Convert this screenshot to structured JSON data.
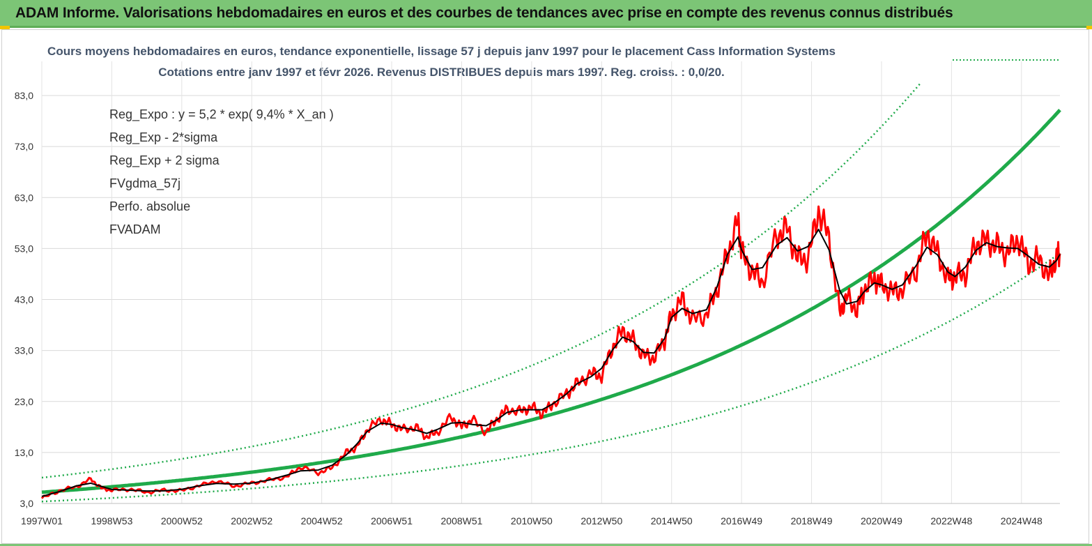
{
  "banner": {
    "title": "ADAM Informe. Valorisations hebdomadaires en euros et des courbes de tendances avec prise en compte des revenus connus distribués"
  },
  "chart_data": {
    "type": "line",
    "title": "Cours moyens hebdomadaires en euros, tendance exponentielle, lissage 57 j depuis janv 1997 pour le placement Cass Information Systems",
    "subtitle": "Cotations entre janv 1997 et févr 2026. Revenus DISTRIBUES depuis mars 1997. Reg. croiss. : 0,0/20.",
    "xlabel": "",
    "ylabel": "",
    "ylim": [
      3,
      93
    ],
    "xlim": [
      1997.0,
      2026.1
    ],
    "yticks": [
      "83,0",
      "73,0",
      "63,0",
      "53,0",
      "43,0",
      "33,0",
      "23,0",
      "13,0",
      "3,0"
    ],
    "ytick_values": [
      83,
      73,
      63,
      53,
      43,
      33,
      23,
      13,
      3
    ],
    "xticks": [
      "1997W01",
      "1998W53",
      "2000W52",
      "2002W52",
      "2004W52",
      "2006W51",
      "2008W51",
      "2010W50",
      "2012W50",
      "2014W50",
      "2016W49",
      "2018W49",
      "2020W49",
      "2022W48",
      "2024W48"
    ],
    "xtick_years": [
      1997.0,
      1999.0,
      2001.0,
      2003.0,
      2005.0,
      2007.0,
      2009.0,
      2011.0,
      2013.0,
      2015.0,
      2017.0,
      2019.0,
      2021.0,
      2023.0,
      2025.0
    ],
    "grid": true,
    "legend_position": "top-left",
    "trend": {
      "a": 5.2,
      "rate": 0.094,
      "sigma_factor_low": 0.65,
      "sigma_factor_high": 1.55
    },
    "series": [
      {
        "name": "Reg_Expo : y = 5,2 * exp( 9,4% *  X_an )",
        "color": "#1faa4a",
        "style": "solid-thick"
      },
      {
        "name": "Reg_Exp - 2*sigma",
        "color": "#1faa4a",
        "style": "dotted"
      },
      {
        "name": "Reg_Exp + 2 sigma",
        "color": "#1faa4a",
        "style": "dotted"
      },
      {
        "name": "FVgdma_57j",
        "color": "#000000",
        "style": "solid"
      },
      {
        "name": "Perfo. absolue",
        "color": "#ff0000",
        "style": "dotted"
      },
      {
        "name": "FVADAM",
        "color": "#ff0000",
        "style": "solid-thick",
        "x": [
          1997.0,
          1997.5,
          1998.0,
          1998.4,
          1998.7,
          1999.0,
          1999.5,
          2000.0,
          2000.5,
          2001.0,
          2001.5,
          2002.0,
          2002.5,
          2003.0,
          2003.5,
          2004.0,
          2004.4,
          2004.9,
          2005.3,
          2005.7,
          2006.0,
          2006.3,
          2006.7,
          2007.0,
          2007.3,
          2007.7,
          2008.0,
          2008.3,
          2008.7,
          2009.0,
          2009.3,
          2009.7,
          2010.0,
          2010.3,
          2010.7,
          2011.0,
          2011.3,
          2011.6,
          2012.0,
          2012.3,
          2012.7,
          2013.0,
          2013.3,
          2013.6,
          2013.9,
          2014.2,
          2014.5,
          2014.8,
          2015.0,
          2015.3,
          2015.6,
          2016.0,
          2016.3,
          2016.6,
          2016.9,
          2017.0,
          2017.3,
          2017.6,
          2018.0,
          2018.3,
          2018.6,
          2018.9,
          2019.2,
          2019.5,
          2019.8,
          2020.0,
          2020.3,
          2020.5,
          2020.8,
          2021.0,
          2021.3,
          2021.6,
          2022.0,
          2022.3,
          2022.6,
          2022.9,
          2023.1,
          2023.4,
          2023.7,
          2024.0,
          2024.3,
          2024.6,
          2024.9,
          2025.2,
          2025.5,
          2025.8,
          2026.0,
          2026.1
        ],
        "values": [
          4.0,
          5.5,
          6.3,
          7.8,
          6.0,
          5.6,
          5.8,
          5.2,
          5.6,
          5.5,
          6.5,
          7.4,
          6.4,
          7.0,
          7.6,
          8.2,
          10.2,
          9.0,
          10.0,
          13.0,
          14.0,
          17.5,
          19.5,
          18.5,
          17.5,
          18.0,
          16.0,
          17.0,
          20.0,
          18.0,
          19.5,
          17.0,
          19.5,
          21.5,
          21.0,
          22.0,
          20.5,
          22.5,
          24.5,
          26.5,
          28.5,
          28.0,
          33.5,
          37.0,
          35.0,
          32.0,
          31.5,
          35.0,
          40.0,
          43.0,
          39.0,
          40.0,
          45.0,
          52.0,
          58.5,
          52.0,
          48.5,
          46.5,
          55.5,
          57.0,
          51.0,
          51.0,
          60.5,
          55.0,
          40.5,
          43.5,
          41.0,
          45.0,
          47.0,
          46.0,
          44.5,
          45.0,
          49.0,
          56.0,
          52.0,
          47.0,
          47.5,
          48.0,
          54.0,
          54.5,
          53.5,
          52.0,
          55.0,
          50.0,
          51.0,
          47.5,
          51.5,
          52.0
        ]
      }
    ]
  }
}
